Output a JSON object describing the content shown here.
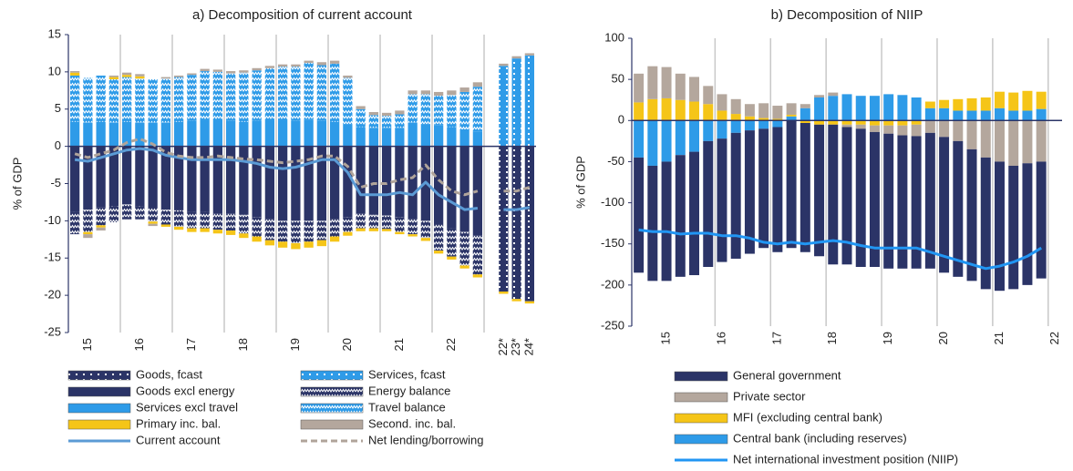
{
  "chart_data": [
    {
      "type": "bar",
      "title": "a) Decomposition of current account",
      "y_label": "% of GDP",
      "categories": [
        null,
        "15",
        null,
        null,
        null,
        "16",
        null,
        null,
        null,
        "17",
        null,
        null,
        null,
        "18",
        null,
        null,
        null,
        "19",
        null,
        null,
        null,
        "20",
        null,
        null,
        null,
        "21",
        null,
        null,
        null,
        "22",
        null,
        null,
        null,
        "22*",
        "23*",
        "24*"
      ],
      "ylim": [
        -25,
        15
      ],
      "yticks": [
        -25,
        -20,
        -15,
        -10,
        -5,
        0,
        5,
        10,
        15
      ],
      "series": [
        {
          "name": "Goods, fcast",
          "color": "#2b3467",
          "hatch": "dots",
          "values": [
            null,
            null,
            null,
            null,
            null,
            null,
            null,
            null,
            null,
            null,
            null,
            null,
            null,
            null,
            null,
            null,
            null,
            null,
            null,
            null,
            null,
            null,
            null,
            null,
            null,
            null,
            null,
            null,
            null,
            null,
            null,
            null,
            null,
            -19.5,
            -20.5,
            -20.8
          ]
        },
        {
          "name": "Services, fcast",
          "color": "#2e9be8",
          "hatch": "dots",
          "values": [
            null,
            null,
            null,
            null,
            null,
            null,
            null,
            null,
            null,
            null,
            null,
            null,
            null,
            null,
            null,
            null,
            null,
            null,
            null,
            null,
            null,
            null,
            null,
            null,
            null,
            null,
            null,
            null,
            null,
            null,
            null,
            null,
            null,
            10.8,
            11.8,
            12.2
          ]
        },
        {
          "name": "Goods excl energy",
          "color": "#2b3467",
          "values": [
            -8.8,
            -8.5,
            -8.2,
            -8.0,
            -7.8,
            -8.0,
            -8.3,
            -8.5,
            -8.6,
            -8.8,
            -8.8,
            -9.0,
            -9.0,
            -9.2,
            -9.5,
            -9.8,
            -10.0,
            -10.0,
            -10.0,
            -10.0,
            -9.8,
            -9.5,
            -9.0,
            -9.2,
            -9.3,
            -9.5,
            -9.8,
            -10.0,
            -10.5,
            -11.0,
            -11.5,
            -12.0,
            null,
            null,
            null,
            null
          ]
        },
        {
          "name": "Energy balance",
          "color": "#2b3467",
          "hatch": "zigzag",
          "values": [
            -3.0,
            -3.0,
            -2.4,
            -2.2,
            -2.0,
            -1.8,
            -1.8,
            -2.0,
            -2.2,
            -2.2,
            -2.2,
            -2.2,
            -2.3,
            -2.5,
            -2.6,
            -2.8,
            -2.8,
            -3.0,
            -2.8,
            -2.6,
            -2.3,
            -2.0,
            -2.0,
            -1.8,
            -1.8,
            -2.0,
            -2.0,
            -2.3,
            -3.5,
            -3.8,
            -4.5,
            -5.2,
            null,
            null,
            null,
            null
          ]
        },
        {
          "name": "Services excl travel",
          "color": "#2e9be8",
          "values": [
            3.3,
            3.2,
            3.3,
            3.2,
            3.3,
            3.2,
            3.2,
            3.2,
            3.3,
            3.4,
            3.5,
            3.5,
            3.4,
            3.3,
            3.4,
            3.5,
            3.5,
            3.4,
            3.6,
            3.4,
            3.3,
            3.0,
            2.6,
            2.5,
            2.5,
            2.5,
            3.2,
            3.0,
            2.8,
            2.6,
            2.3,
            2.0,
            null,
            null,
            null,
            null
          ]
        },
        {
          "name": "Travel balance",
          "color": "#2e9be8",
          "hatch": "zigzag",
          "values": [
            6.2,
            6.0,
            6.2,
            5.8,
            6.0,
            5.9,
            5.8,
            5.9,
            6.0,
            6.2,
            6.6,
            6.5,
            6.4,
            6.6,
            6.8,
            7.0,
            7.2,
            7.3,
            7.6,
            7.5,
            7.8,
            6.2,
            2.4,
            1.7,
            1.6,
            1.8,
            3.8,
            4.0,
            4.0,
            4.3,
            5.0,
            6.0,
            null,
            null,
            null,
            null
          ]
        },
        {
          "name": "Primary inc. bal.",
          "color": "#f5c518",
          "values": [
            0.4,
            -0.3,
            -0.3,
            0.3,
            0.3,
            0.3,
            -0.3,
            -0.3,
            -0.4,
            -0.5,
            -0.5,
            -0.5,
            -0.6,
            -0.6,
            -0.7,
            -0.7,
            -0.8,
            -0.8,
            -0.8,
            -0.8,
            -0.7,
            -0.5,
            -0.4,
            -0.4,
            -0.3,
            -0.3,
            -0.3,
            -0.4,
            -0.4,
            -0.4,
            -0.4,
            -0.4,
            null,
            -0.3,
            -0.3,
            -0.3
          ]
        },
        {
          "name": "Second. inc. bal.",
          "color": "#b4a79d",
          "values": [
            0.2,
            -0.5,
            -0.4,
            0.2,
            0.3,
            0.3,
            -0.3,
            0.2,
            0.2,
            0.2,
            0.3,
            0.3,
            0.3,
            0.3,
            0.3,
            0.3,
            0.3,
            0.3,
            0.3,
            0.4,
            0.4,
            0.3,
            0.4,
            0.4,
            0.4,
            0.5,
            0.5,
            0.5,
            0.5,
            0.6,
            0.6,
            0.6,
            null,
            0.3,
            0.3,
            0.3
          ]
        },
        {
          "name": "Current account",
          "color": "#5b9bd5",
          "type": "line",
          "values": [
            -1.8,
            -2.0,
            -1.5,
            -1.0,
            -0.5,
            -0.3,
            -0.5,
            -1.2,
            -1.5,
            -1.8,
            -1.8,
            -1.8,
            -1.8,
            -2.0,
            -2.3,
            -2.8,
            -3.0,
            -2.8,
            -2.3,
            -1.8,
            -1.8,
            -3.5,
            -6.5,
            -6.5,
            -6.5,
            -6.2,
            -6.5,
            -4.8,
            -6.5,
            -7.5,
            -8.5,
            -8.3,
            null,
            -8.5,
            -8.5,
            -8.2
          ]
        },
        {
          "name": "Net lending/borrowing",
          "color": "#b0a49a",
          "type": "line",
          "dash": true,
          "values": [
            -1.0,
            -1.5,
            -1.0,
            -0.5,
            0.5,
            1.0,
            0.3,
            -0.8,
            -1.3,
            -1.5,
            -1.5,
            -1.3,
            -1.5,
            -1.7,
            -1.8,
            -2.0,
            -2.2,
            -2.0,
            -1.8,
            -1.3,
            -1.3,
            -2.7,
            -5.5,
            -5.0,
            -5.0,
            -4.5,
            -4.2,
            -2.5,
            -4.5,
            -6.0,
            -6.5,
            -6.0,
            null,
            -6.0,
            -6.0,
            -5.5
          ]
        }
      ]
    },
    {
      "type": "bar",
      "title": "b) Decomposition of NIIP",
      "y_label": "% of GDP",
      "categories": [
        null,
        null,
        "15",
        null,
        null,
        null,
        "16",
        null,
        null,
        null,
        "17",
        null,
        null,
        null,
        "18",
        null,
        null,
        null,
        "19",
        null,
        null,
        null,
        "20",
        null,
        null,
        null,
        "21",
        null,
        null,
        null,
        "22"
      ],
      "ylim": [
        -250,
        100
      ],
      "yticks": [
        -250,
        -200,
        -150,
        -100,
        -50,
        0,
        50,
        100
      ],
      "series": [
        {
          "name": "General government",
          "color": "#2b3467",
          "values": [
            -140,
            -140,
            -145,
            -148,
            -150,
            -153,
            -150,
            -153,
            -150,
            -145,
            -152,
            -155,
            -157,
            -160,
            -170,
            -167,
            -168,
            -164,
            -164,
            -162,
            -161,
            -165,
            -165,
            -165,
            -160,
            -160,
            -157,
            -150,
            -148,
            -142,
            null
          ]
        },
        {
          "name": "Private sector",
          "color": "#b4a79d",
          "values": [
            35,
            40,
            38,
            32,
            30,
            22,
            20,
            18,
            15,
            18,
            16,
            14,
            5,
            3,
            4,
            -3,
            -5,
            -8,
            -10,
            -12,
            -14,
            -15,
            -20,
            -25,
            -35,
            -45,
            -50,
            -55,
            -52,
            -50,
            null
          ]
        },
        {
          "name": "MFI (excluding central bank)",
          "color": "#f5c518",
          "values": [
            22,
            26,
            27,
            25,
            23,
            20,
            12,
            8,
            5,
            3,
            2,
            2,
            -3,
            -5,
            -5,
            -5,
            -5,
            -6,
            -6,
            -6,
            -5,
            8,
            10,
            14,
            15,
            16,
            20,
            22,
            24,
            21,
            null
          ]
        },
        {
          "name": "Central bank (including reserves)",
          "color": "#2e9be8",
          "values": [
            -45,
            -55,
            -50,
            -42,
            -38,
            -25,
            -22,
            -15,
            -12,
            -10,
            -8,
            5,
            15,
            28,
            30,
            32,
            30,
            30,
            32,
            31,
            28,
            15,
            15,
            12,
            12,
            12,
            15,
            12,
            12,
            14,
            null
          ]
        },
        {
          "name": "Net international investment position (NIIP)",
          "color": "#2196f3",
          "type": "line",
          "values": [
            -133,
            -135,
            -135,
            -138,
            -137,
            -137,
            -140,
            -140,
            -143,
            -148,
            -150,
            -148,
            -150,
            -148,
            -146,
            -148,
            -152,
            -155,
            -155,
            -155,
            -155,
            -160,
            -165,
            -170,
            -175,
            -180,
            -177,
            -172,
            -165,
            -155,
            null
          ]
        }
      ]
    }
  ]
}
